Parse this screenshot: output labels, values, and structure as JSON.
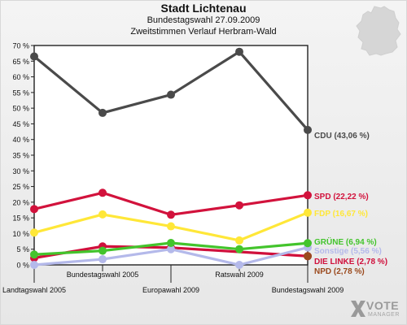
{
  "header": {
    "title": "Stadt Lichtenau",
    "subtitle": "Bundestagswahl 27.09.2009",
    "subtitle2": "Zweitstimmen Verlauf Herbram-Wald"
  },
  "logo": {
    "vote": "VOTE",
    "manager": "MANAGER"
  },
  "colors": {
    "CDU": "#4a4a4a",
    "SPD": "#d2123c",
    "FDP": "#ffe738",
    "GRUENE": "#43c42c",
    "Sonstige": "#b4b9ea",
    "LINKE": "#d0103c",
    "NPD": "#9b4a1e"
  },
  "chart_data": {
    "type": "line",
    "title": "Stadt Lichtenau",
    "categories": [
      "Landtagswahl 2005",
      "Bundestagswahl 2005",
      "Europawahl 2009",
      "Ratswahl 2009",
      "Bundestagswahl 2009"
    ],
    "ylim": [
      0,
      70
    ],
    "yticks": [
      "0 %",
      "5 %",
      "10 %",
      "15 %",
      "20 %",
      "25 %",
      "30 %",
      "35 %",
      "40 %",
      "45 %",
      "50 %",
      "55 %",
      "60 %",
      "65 %",
      "70 %"
    ],
    "grid": false,
    "series": [
      {
        "name": "CDU",
        "color": "#4a4a4a",
        "values": [
          66.5,
          48.5,
          54.3,
          68.0,
          43.06
        ],
        "label": "CDU (43,06 %)"
      },
      {
        "name": "SPD",
        "color": "#d2123c",
        "values": [
          17.8,
          23.0,
          16.0,
          19.0,
          22.22
        ],
        "label": "SPD (22,22 %)"
      },
      {
        "name": "FDP",
        "color": "#ffe738",
        "values": [
          10.3,
          16.1,
          12.3,
          7.8,
          16.67
        ],
        "label": "FDP (16,67 %)"
      },
      {
        "name": "GRÜNE",
        "color": "#43c42c",
        "values": [
          3.3,
          4.5,
          7.0,
          5.0,
          6.94
        ],
        "label": "GRÜNE (6,94 %)"
      },
      {
        "name": "Sonstige",
        "color": "#b4b9ea",
        "values": [
          0.0,
          1.8,
          5.0,
          0.0,
          5.56
        ],
        "label": "Sonstige (5,56 %)"
      },
      {
        "name": "DIE LINKE",
        "color": "#d0103c",
        "values": [
          2.2,
          5.9,
          5.5,
          null,
          2.78
        ],
        "label": "DIE LINKE (2,78 %)"
      },
      {
        "name": "NPD",
        "color": "#9b4a1e",
        "values": [
          null,
          null,
          null,
          null,
          2.78
        ],
        "label": "NPD (2,78 %)"
      }
    ]
  }
}
